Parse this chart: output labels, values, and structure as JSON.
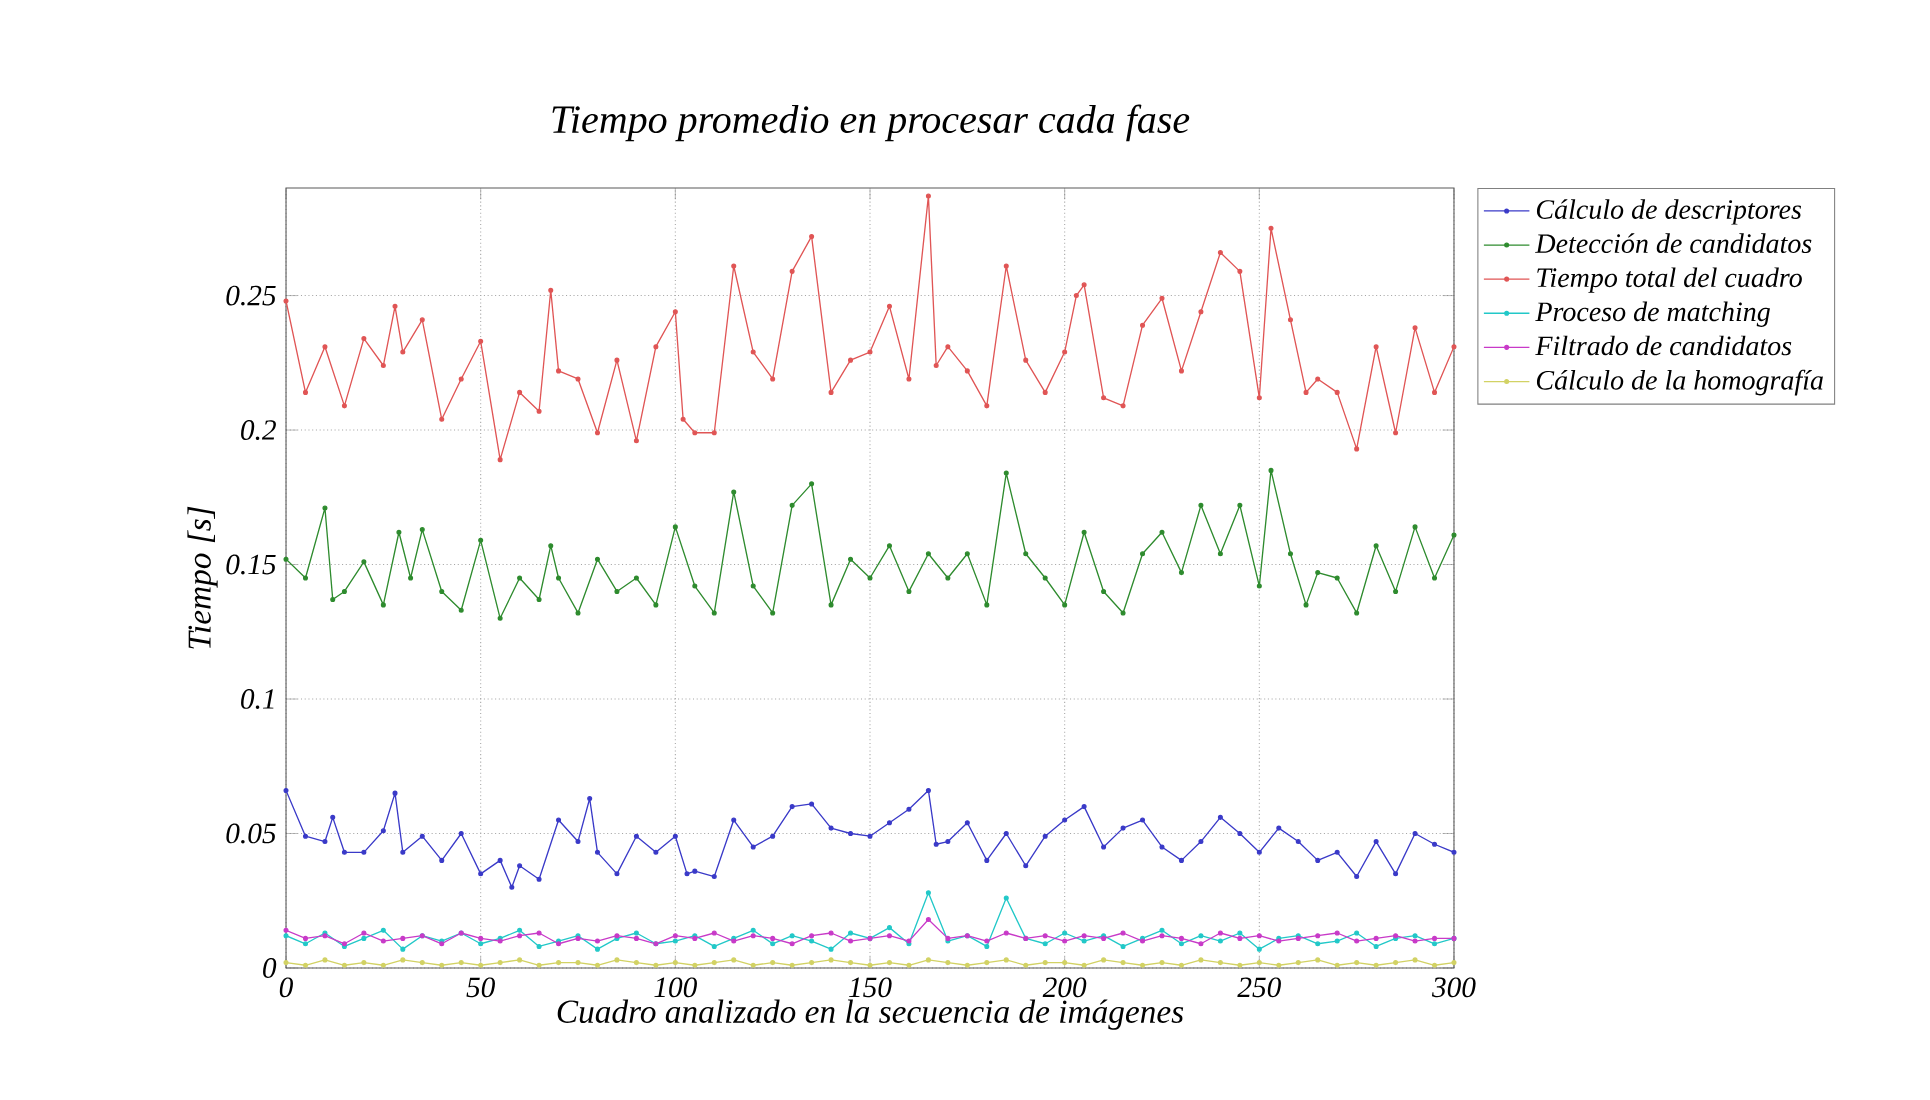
{
  "chart_data": {
    "type": "line",
    "title": "Tiempo promedio en procesar cada fase",
    "xlabel": "Cuadro analizado en la secuencia de imágenes",
    "ylabel": "Tiempo [s]",
    "x": [
      0,
      5,
      10,
      15,
      20,
      25,
      30,
      35,
      40,
      45,
      50,
      55,
      60,
      65,
      70,
      75,
      80,
      85,
      90,
      95,
      100,
      105,
      110,
      115,
      120,
      125,
      130,
      135,
      140,
      145,
      150,
      155,
      160,
      165,
      170,
      175,
      180,
      185,
      190,
      195,
      200,
      205,
      210,
      215,
      220,
      225,
      230,
      235,
      240,
      245,
      250,
      255,
      260,
      265,
      270,
      275,
      280,
      285,
      290,
      295,
      300
    ],
    "xlim": [
      0,
      300
    ],
    "xticks": [
      0,
      50,
      100,
      150,
      200,
      250,
      300
    ],
    "ylim": [
      0,
      0.29
    ],
    "yticks": [
      0,
      0.05,
      0.1,
      0.15,
      0.2,
      0.25
    ],
    "grid": true,
    "legend": "top right",
    "marker": "circle",
    "series": [
      {
        "name": "Cálculo de descriptores",
        "color": "#3a3ac8",
        "x": [
          0,
          5,
          10,
          12,
          15,
          20,
          25,
          28,
          30,
          35,
          40,
          45,
          50,
          55,
          58,
          60,
          65,
          70,
          75,
          78,
          80,
          85,
          90,
          95,
          100,
          103,
          105,
          110,
          115,
          120,
          125,
          130,
          135,
          140,
          145,
          150,
          155,
          160,
          165,
          167,
          170,
          175,
          180,
          185,
          190,
          195,
          200,
          205,
          210,
          215,
          220,
          225,
          230,
          235,
          240,
          245,
          250,
          255,
          260,
          265,
          270,
          275,
          280,
          285,
          290,
          295,
          300
        ],
        "values": [
          0.066,
          0.049,
          0.047,
          0.056,
          0.043,
          0.043,
          0.051,
          0.065,
          0.043,
          0.049,
          0.04,
          0.05,
          0.035,
          0.04,
          0.03,
          0.038,
          0.033,
          0.055,
          0.047,
          0.063,
          0.043,
          0.035,
          0.049,
          0.043,
          0.049,
          0.035,
          0.036,
          0.034,
          0.055,
          0.045,
          0.049,
          0.06,
          0.061,
          0.052,
          0.05,
          0.049,
          0.054,
          0.059,
          0.066,
          0.046,
          0.047,
          0.054,
          0.04,
          0.05,
          0.038,
          0.049,
          0.055,
          0.06,
          0.045,
          0.052,
          0.055,
          0.045,
          0.04,
          0.047,
          0.056,
          0.05,
          0.043,
          0.052,
          0.047,
          0.04,
          0.043,
          0.034,
          0.047,
          0.035,
          0.05,
          0.046,
          0.043
        ]
      },
      {
        "name": "Detección de candidatos",
        "color": "#2e8b2e",
        "x": [
          0,
          5,
          10,
          12,
          15,
          20,
          25,
          29,
          32,
          35,
          40,
          45,
          50,
          55,
          60,
          65,
          68,
          70,
          75,
          80,
          85,
          90,
          95,
          100,
          105,
          110,
          115,
          120,
          125,
          130,
          135,
          140,
          145,
          150,
          155,
          160,
          165,
          170,
          175,
          180,
          185,
          190,
          195,
          200,
          205,
          210,
          215,
          220,
          225,
          230,
          235,
          240,
          245,
          250,
          253,
          258,
          262,
          265,
          270,
          275,
          280,
          285,
          290,
          295,
          300
        ],
        "values": [
          0.152,
          0.145,
          0.171,
          0.137,
          0.14,
          0.151,
          0.135,
          0.162,
          0.145,
          0.163,
          0.14,
          0.133,
          0.159,
          0.13,
          0.145,
          0.137,
          0.157,
          0.145,
          0.132,
          0.152,
          0.14,
          0.145,
          0.135,
          0.164,
          0.142,
          0.132,
          0.177,
          0.142,
          0.132,
          0.172,
          0.18,
          0.135,
          0.152,
          0.145,
          0.157,
          0.14,
          0.154,
          0.145,
          0.154,
          0.135,
          0.184,
          0.154,
          0.145,
          0.135,
          0.162,
          0.14,
          0.132,
          0.154,
          0.162,
          0.147,
          0.172,
          0.154,
          0.172,
          0.142,
          0.185,
          0.154,
          0.135,
          0.147,
          0.145,
          0.132,
          0.157,
          0.14,
          0.164,
          0.145,
          0.161
        ]
      },
      {
        "name": "Tiempo total del cuadro",
        "color": "#e05555",
        "x": [
          0,
          5,
          10,
          15,
          20,
          25,
          28,
          30,
          35,
          40,
          45,
          50,
          55,
          60,
          65,
          68,
          70,
          75,
          80,
          85,
          90,
          95,
          100,
          102,
          105,
          110,
          115,
          120,
          125,
          130,
          135,
          140,
          145,
          150,
          155,
          160,
          165,
          167,
          170,
          175,
          180,
          185,
          190,
          195,
          200,
          203,
          205,
          210,
          215,
          220,
          225,
          230,
          235,
          240,
          245,
          250,
          253,
          258,
          262,
          265,
          270,
          275,
          280,
          285,
          290,
          295,
          300
        ],
        "values": [
          0.248,
          0.214,
          0.231,
          0.209,
          0.234,
          0.224,
          0.246,
          0.229,
          0.241,
          0.204,
          0.219,
          0.233,
          0.189,
          0.214,
          0.207,
          0.252,
          0.222,
          0.219,
          0.199,
          0.226,
          0.196,
          0.231,
          0.244,
          0.204,
          0.199,
          0.199,
          0.261,
          0.229,
          0.219,
          0.259,
          0.272,
          0.214,
          0.226,
          0.229,
          0.246,
          0.219,
          0.287,
          0.224,
          0.231,
          0.222,
          0.209,
          0.261,
          0.226,
          0.214,
          0.229,
          0.25,
          0.254,
          0.212,
          0.209,
          0.239,
          0.249,
          0.222,
          0.244,
          0.266,
          0.259,
          0.212,
          0.275,
          0.241,
          0.214,
          0.219,
          0.214,
          0.193,
          0.231,
          0.199,
          0.238,
          0.214,
          0.231
        ]
      },
      {
        "name": "Proceso de matching",
        "color": "#22c8c8",
        "values": [
          0.012,
          0.009,
          0.013,
          0.008,
          0.011,
          0.014,
          0.007,
          0.012,
          0.01,
          0.013,
          0.009,
          0.011,
          0.014,
          0.008,
          0.01,
          0.012,
          0.007,
          0.011,
          0.013,
          0.009,
          0.01,
          0.012,
          0.008,
          0.011,
          0.014,
          0.009,
          0.012,
          0.01,
          0.007,
          0.013,
          0.011,
          0.015,
          0.009,
          0.028,
          0.01,
          0.012,
          0.008,
          0.026,
          0.011,
          0.009,
          0.013,
          0.01,
          0.012,
          0.008,
          0.011,
          0.014,
          0.009,
          0.012,
          0.01,
          0.013,
          0.007,
          0.011,
          0.012,
          0.009,
          0.01,
          0.013,
          0.008,
          0.011,
          0.012,
          0.009,
          0.011
        ]
      },
      {
        "name": "Filtrado de candidatos",
        "color": "#c83ac8",
        "values": [
          0.014,
          0.011,
          0.012,
          0.009,
          0.013,
          0.01,
          0.011,
          0.012,
          0.009,
          0.013,
          0.011,
          0.01,
          0.012,
          0.013,
          0.009,
          0.011,
          0.01,
          0.012,
          0.011,
          0.009,
          0.012,
          0.011,
          0.013,
          0.01,
          0.012,
          0.011,
          0.009,
          0.012,
          0.013,
          0.01,
          0.011,
          0.012,
          0.01,
          0.018,
          0.011,
          0.012,
          0.01,
          0.013,
          0.011,
          0.012,
          0.01,
          0.012,
          0.011,
          0.013,
          0.01,
          0.012,
          0.011,
          0.009,
          0.013,
          0.011,
          0.012,
          0.01,
          0.011,
          0.012,
          0.013,
          0.01,
          0.011,
          0.012,
          0.01,
          0.011,
          0.011
        ]
      },
      {
        "name": "Cálculo de la homografía",
        "color": "#d2d264",
        "values": [
          0.002,
          0.001,
          0.003,
          0.001,
          0.002,
          0.001,
          0.003,
          0.002,
          0.001,
          0.002,
          0.001,
          0.002,
          0.003,
          0.001,
          0.002,
          0.002,
          0.001,
          0.003,
          0.002,
          0.001,
          0.002,
          0.001,
          0.002,
          0.003,
          0.001,
          0.002,
          0.001,
          0.002,
          0.003,
          0.002,
          0.001,
          0.002,
          0.001,
          0.003,
          0.002,
          0.001,
          0.002,
          0.003,
          0.001,
          0.002,
          0.002,
          0.001,
          0.003,
          0.002,
          0.001,
          0.002,
          0.001,
          0.003,
          0.002,
          0.001,
          0.002,
          0.001,
          0.002,
          0.003,
          0.001,
          0.002,
          0.001,
          0.002,
          0.003,
          0.001,
          0.002
        ]
      }
    ]
  }
}
